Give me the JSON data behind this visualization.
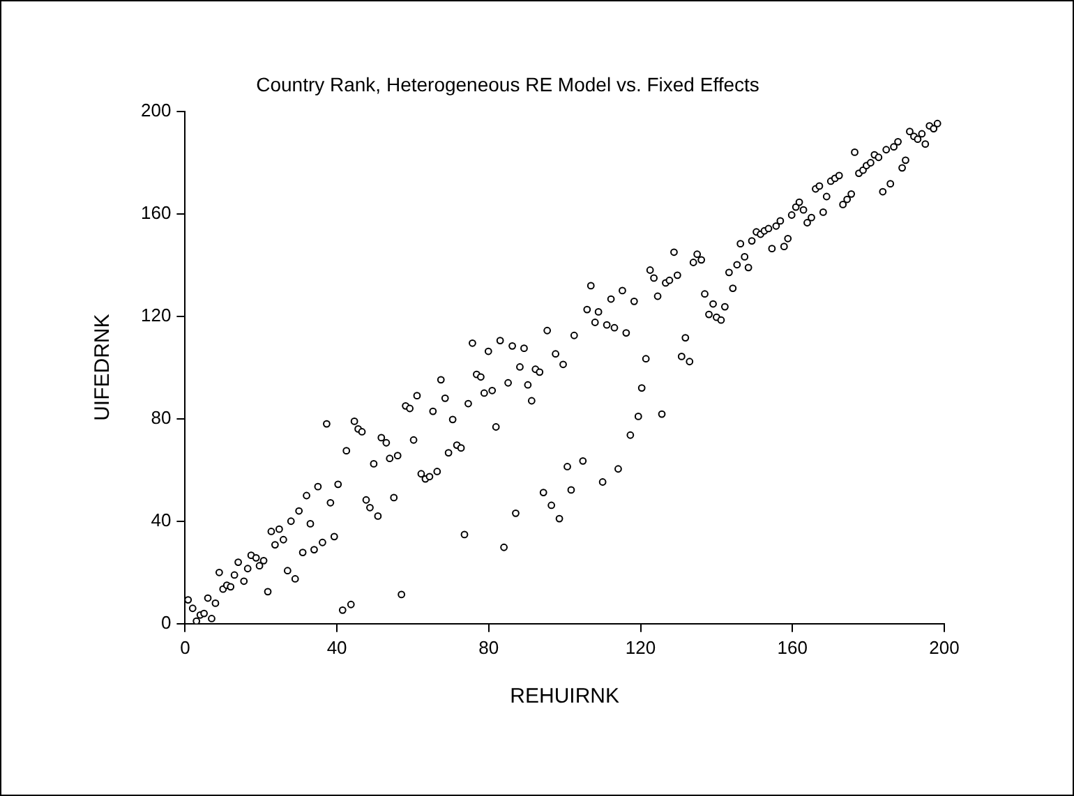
{
  "chart_data": {
    "type": "scatter",
    "title": "Country Rank, Heterogeneous RE Model vs. Fixed Effects",
    "xlabel": "REHUIRNK",
    "ylabel": "UIFEDRNK",
    "xlim": [
      0,
      200
    ],
    "ylim": [
      0,
      200
    ],
    "xticks": [
      0,
      40,
      80,
      120,
      160,
      200
    ],
    "yticks": [
      0,
      40,
      80,
      120,
      160,
      200
    ],
    "grid": false,
    "legend": false,
    "marker": "circle",
    "series": [
      {
        "color": "#000000",
        "x": [
          0.8,
          2,
          3,
          4,
          5,
          6,
          7,
          8,
          9,
          10,
          11,
          12,
          13,
          14,
          15.5,
          16.5,
          17.4,
          18.7,
          19.6,
          20.7,
          21.8,
          22.7,
          23.7,
          24.8,
          25.9,
          27,
          27.9,
          29,
          30,
          31,
          32,
          33,
          34,
          35,
          36.2,
          37.3,
          38.3,
          39.3,
          40.3,
          41.5,
          42.5,
          43.7,
          44.6,
          45.6,
          46.6,
          47.7,
          48.7,
          49.7,
          50.8,
          51.7,
          53,
          53.9,
          55,
          56,
          57,
          58.1,
          59.2,
          60.2,
          61.1,
          62.2,
          63.3,
          64.4,
          65.3,
          66.4,
          67.4,
          68.5,
          69.4,
          70.5,
          71.6,
          72.7,
          73.6,
          74.6,
          75.7,
          76.8,
          77.9,
          78.8,
          79.9,
          80.9,
          81.9,
          83,
          84,
          85.1,
          86.2,
          87.1,
          88.2,
          89.3,
          90.3,
          91.3,
          92.3,
          93.4,
          94.4,
          95.4,
          96.5,
          97.6,
          98.6,
          99.6,
          100.7,
          101.7,
          102.5,
          104.8,
          105.9,
          106.9,
          108,
          108.9,
          110,
          111.1,
          112.2,
          113.1,
          114.1,
          115.2,
          116.2,
          117.3,
          118.3,
          119.4,
          120.3,
          121.4,
          122.5,
          123.5,
          124.5,
          125.6,
          126.6,
          127.6,
          128.8,
          129.7,
          130.8,
          131.8,
          132.9,
          133.9,
          134.9,
          136,
          136.9,
          138,
          139.1,
          140,
          141.2,
          142.2,
          143.3,
          144.3,
          145.4,
          146.3,
          147.4,
          148.4,
          149.3,
          150.5,
          151.6,
          152.6,
          153.7,
          154.6,
          155.7,
          156.8,
          157.8,
          158.8,
          159.8,
          160.9,
          161.8,
          162.9,
          163.9,
          165,
          166.1,
          167.1,
          168.1,
          169,
          170.1,
          171.2,
          172.3,
          173.3,
          174.4,
          175.5,
          176.4,
          177.5,
          178.6,
          179.5,
          180.6,
          181.6,
          182.7,
          183.8,
          184.7,
          185.8,
          186.7,
          187.8,
          188.9,
          189.8,
          190.9,
          192,
          193,
          194.1,
          195,
          196.1,
          197.2,
          198.2
        ],
        "values": [
          9.3,
          6,
          1,
          3.4,
          4,
          10,
          2,
          8,
          20,
          13.5,
          15,
          14.4,
          19,
          24,
          16.6,
          21.5,
          26.7,
          25.7,
          22.6,
          24.6,
          12.5,
          36,
          30.8,
          36.9,
          32.8,
          20.7,
          40,
          17.5,
          44,
          27.8,
          50,
          39,
          28.9,
          53.5,
          31.7,
          78,
          47.2,
          34,
          54.4,
          5.3,
          67.5,
          7.5,
          79,
          76,
          74.9,
          48.3,
          45.3,
          62.4,
          42,
          72.6,
          70.6,
          64.5,
          49.2,
          65.6,
          11.4,
          85,
          84,
          71.7,
          89,
          58.5,
          56.5,
          57.4,
          82.9,
          59.4,
          95.2,
          88,
          66.7,
          79.7,
          69.7,
          68.6,
          34.8,
          85.9,
          109.5,
          97.3,
          96.3,
          90,
          106.3,
          91,
          76.8,
          110.5,
          29.8,
          94,
          108.4,
          43.1,
          100.2,
          107.5,
          93.2,
          87,
          99.3,
          98.2,
          51.2,
          114.4,
          46.2,
          105.3,
          41,
          101.2,
          61.3,
          52.2,
          112.5,
          63.5,
          122.6,
          131.9,
          117.6,
          121.7,
          55.3,
          116.6,
          126.7,
          115.5,
          60.4,
          130,
          113.5,
          73.6,
          125.8,
          80.9,
          92,
          103.4,
          138,
          134.9,
          127.8,
          81.8,
          133,
          134,
          145,
          136,
          104.3,
          111.6,
          102.3,
          141,
          144.2,
          142,
          128.7,
          120.7,
          124.8,
          119.6,
          118.5,
          123.7,
          137.1,
          130.9,
          140.1,
          148.3,
          143.2,
          139,
          149.4,
          152.9,
          152,
          153.3,
          154.2,
          146.4,
          155.2,
          157.2,
          147.2,
          150.3,
          159.5,
          162.6,
          164.5,
          161.5,
          156.5,
          158.5,
          169.7,
          170.8,
          160.6,
          166.7,
          172.7,
          173.8,
          174.9,
          163.6,
          165.6,
          167.7,
          184,
          175.8,
          177,
          178.8,
          179.9,
          183,
          182,
          168.6,
          185,
          171.7,
          186.1,
          188.1,
          177.9,
          180.9,
          192.1,
          190.2,
          189.1,
          191.2,
          187.2,
          194.3,
          193.2,
          195.2
        ]
      }
    ]
  }
}
